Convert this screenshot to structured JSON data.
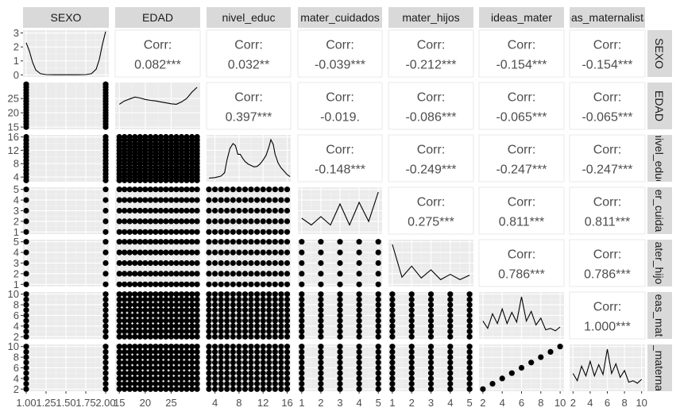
{
  "chart_data": {
    "type": "pairs-matrix",
    "variables": [
      "SEXO",
      "EDAD",
      "nivel_educ",
      "mater_cuidados",
      "mater_hijos",
      "ideas_mater",
      "ideas_maternalista"
    ],
    "column_strip_labels": [
      "SEXO",
      "EDAD",
      "nivel_educ",
      "mater_cuidados",
      "mater_hijos",
      "ideas_mater",
      "eas_maternalista"
    ],
    "row_strip_labels": [
      "SEXO",
      "EDAD",
      "nivel_educ",
      "er_cuida",
      "ater_hijo",
      "eas_mat",
      "_materna"
    ],
    "corr_label": "Corr:",
    "correlations": [
      {
        "row": 0,
        "col": 1,
        "value": "0.082***"
      },
      {
        "row": 0,
        "col": 2,
        "value": "0.032**"
      },
      {
        "row": 0,
        "col": 3,
        "value": "-0.039***"
      },
      {
        "row": 0,
        "col": 4,
        "value": "-0.212***"
      },
      {
        "row": 0,
        "col": 5,
        "value": "-0.154***"
      },
      {
        "row": 0,
        "col": 6,
        "value": "-0.154***"
      },
      {
        "row": 1,
        "col": 2,
        "value": "0.397***"
      },
      {
        "row": 1,
        "col": 3,
        "value": "-0.019."
      },
      {
        "row": 1,
        "col": 4,
        "value": "-0.086***"
      },
      {
        "row": 1,
        "col": 5,
        "value": "-0.065***"
      },
      {
        "row": 1,
        "col": 6,
        "value": "-0.065***"
      },
      {
        "row": 2,
        "col": 3,
        "value": "-0.148***"
      },
      {
        "row": 2,
        "col": 4,
        "value": "-0.249***"
      },
      {
        "row": 2,
        "col": 5,
        "value": "-0.247***"
      },
      {
        "row": 2,
        "col": 6,
        "value": "-0.247***"
      },
      {
        "row": 3,
        "col": 4,
        "value": "0.275***"
      },
      {
        "row": 3,
        "col": 5,
        "value": "0.811***"
      },
      {
        "row": 3,
        "col": 6,
        "value": "0.811***"
      },
      {
        "row": 4,
        "col": 5,
        "value": "0.786***"
      },
      {
        "row": 4,
        "col": 6,
        "value": "0.786***"
      },
      {
        "row": 5,
        "col": 6,
        "value": "1.000***"
      }
    ],
    "x_axis": {
      "xlim": [
        [
          0.96,
          2.04
        ],
        [
          14.2,
          30.6
        ],
        [
          2.6,
          16.6
        ],
        [
          0.8,
          5.2
        ],
        [
          0.8,
          5.2
        ],
        [
          1.6,
          10.4
        ],
        [
          1.6,
          10.4
        ]
      ],
      "ticks": [
        [
          1.0,
          1.25,
          1.5,
          1.75,
          2.0
        ],
        [
          15,
          20,
          25
        ],
        [
          4,
          8,
          12,
          16
        ],
        [
          1,
          2,
          3,
          4,
          5
        ],
        [
          1,
          2,
          3,
          4,
          5
        ],
        [
          2,
          4,
          6,
          8,
          10
        ],
        [
          2,
          4,
          6,
          8,
          10
        ]
      ],
      "tick_labels": [
        [
          "1.00",
          "1.25",
          "1.50",
          "1.75",
          "2.00"
        ],
        [
          "15",
          "20",
          "25"
        ],
        [
          "4",
          "8",
          "12",
          "16"
        ],
        [
          "1",
          "2",
          "3",
          "4",
          "5"
        ],
        [
          "1",
          "2",
          "3",
          "4",
          "5"
        ],
        [
          "2",
          "4",
          "6",
          "8",
          "10"
        ],
        [
          "2",
          "4",
          "6",
          "8",
          "10"
        ]
      ]
    },
    "y_axis": {
      "ylim": [
        [
          -0.15,
          3.2
        ],
        [
          14.2,
          30.6
        ],
        [
          2.6,
          16.6
        ],
        [
          0.8,
          5.2
        ],
        [
          0.8,
          5.2
        ],
        [
          1.6,
          10.4
        ],
        [
          1.6,
          10.4
        ]
      ],
      "ticks": [
        [
          0,
          1,
          2,
          3
        ],
        [
          15,
          20,
          25
        ],
        [
          4,
          8,
          12,
          16
        ],
        [
          1,
          2,
          3,
          4,
          5
        ],
        [
          1,
          2,
          3,
          4,
          5
        ],
        [
          2,
          4,
          6,
          8,
          10
        ],
        [
          2,
          4,
          6,
          8,
          10
        ]
      ],
      "tick_labels": [
        [
          "0",
          "1",
          "2",
          "3"
        ],
        [
          "15",
          "20",
          "25"
        ],
        [
          "4",
          "8",
          "12",
          "16"
        ],
        [
          "1",
          "2",
          "3",
          "4",
          "5"
        ],
        [
          "1",
          "2",
          "3",
          "4",
          "5"
        ],
        [
          "2",
          "4",
          "6",
          "8",
          "10"
        ],
        [
          "2",
          "4",
          "6",
          "8",
          "10"
        ]
      ]
    },
    "densities": [
      {
        "var": "SEXO",
        "x": [
          1.0,
          1.04,
          1.08,
          1.12,
          1.18,
          1.25,
          1.35,
          1.5,
          1.65,
          1.75,
          1.82,
          1.88,
          1.92,
          1.96,
          2.0
        ],
        "y": [
          2.3,
          1.7,
          0.9,
          0.35,
          0.08,
          0.02,
          0.01,
          0.01,
          0.01,
          0.02,
          0.08,
          0.4,
          1.1,
          2.2,
          3.1
        ]
      },
      {
        "var": "EDAD",
        "x": [
          15,
          16,
          17,
          18,
          19,
          20,
          21,
          22,
          23,
          24,
          25,
          26,
          27,
          28,
          29,
          30
        ],
        "y": [
          0.45,
          0.52,
          0.56,
          0.6,
          0.58,
          0.55,
          0.53,
          0.52,
          0.5,
          0.48,
          0.46,
          0.45,
          0.5,
          0.57,
          0.7,
          0.8
        ]
      },
      {
        "var": "nivel_educ",
        "x": [
          3,
          4,
          5,
          5.6,
          6,
          6.5,
          7,
          7.4,
          7.8,
          8.2,
          8.6,
          9,
          9.5,
          10,
          10.5,
          11,
          11.5,
          12,
          12.5,
          13,
          13.3,
          13.7,
          14,
          14.5,
          15,
          15.5,
          16,
          16.5
        ],
        "y": [
          0.01,
          0.02,
          0.05,
          0.12,
          0.38,
          0.62,
          0.72,
          0.68,
          0.5,
          0.5,
          0.42,
          0.35,
          0.3,
          0.27,
          0.24,
          0.25,
          0.3,
          0.38,
          0.48,
          0.66,
          0.8,
          0.7,
          0.5,
          0.32,
          0.22,
          0.15,
          0.08,
          0.04
        ]
      },
      {
        "var": "mater_cuidados",
        "x": [
          1,
          1.5,
          2,
          2.5,
          3,
          3.5,
          4,
          4.5,
          5
        ],
        "y": [
          0.32,
          0.15,
          0.36,
          0.15,
          0.68,
          0.15,
          0.72,
          0.24,
          0.98
        ]
      },
      {
        "var": "mater_hijos",
        "x": [
          1,
          1.5,
          2,
          2.5,
          3,
          3.5,
          4,
          4.5,
          5
        ],
        "y": [
          0.95,
          0.15,
          0.42,
          0.13,
          0.33,
          0.09,
          0.22,
          0.09,
          0.2
        ]
      },
      {
        "var": "ideas_mater",
        "x": [
          2,
          2.5,
          3,
          3.5,
          4,
          4.5,
          5,
          5.5,
          6,
          6.5,
          7,
          7.5,
          8,
          8.5,
          9,
          9.5,
          10
        ],
        "y": [
          0.3,
          0.15,
          0.45,
          0.25,
          0.55,
          0.25,
          0.48,
          0.28,
          0.8,
          0.3,
          0.5,
          0.22,
          0.36,
          0.12,
          0.15,
          0.1,
          0.18
        ]
      },
      {
        "var": "ideas_maternalista",
        "x": [
          2,
          2.5,
          3,
          3.5,
          4,
          4.5,
          5,
          5.5,
          6,
          6.5,
          7,
          7.5,
          8,
          8.5,
          9,
          9.5,
          10
        ],
        "y": [
          0.3,
          0.15,
          0.45,
          0.25,
          0.55,
          0.25,
          0.48,
          0.28,
          0.8,
          0.3,
          0.5,
          0.22,
          0.36,
          0.12,
          0.15,
          0.1,
          0.18
        ]
      }
    ],
    "scatter_support": {
      "SEXO": [
        1,
        2
      ],
      "EDAD": [
        15,
        16,
        17,
        18,
        19,
        20,
        21,
        22,
        23,
        24,
        25,
        26,
        27,
        28,
        29,
        30
      ],
      "nivel_educ": [
        3,
        4,
        5,
        6,
        7,
        8,
        9,
        10,
        11,
        12,
        13,
        14,
        15,
        16
      ],
      "mater_cuidados": [
        1,
        2,
        3,
        4,
        5
      ],
      "mater_hijos": [
        1,
        2,
        3,
        4,
        5
      ],
      "ideas_mater": [
        2,
        3,
        4,
        5,
        6,
        7,
        8,
        9,
        10
      ],
      "ideas_maternalista": [
        2,
        3,
        4,
        5,
        6,
        7,
        8,
        9,
        10
      ]
    }
  }
}
